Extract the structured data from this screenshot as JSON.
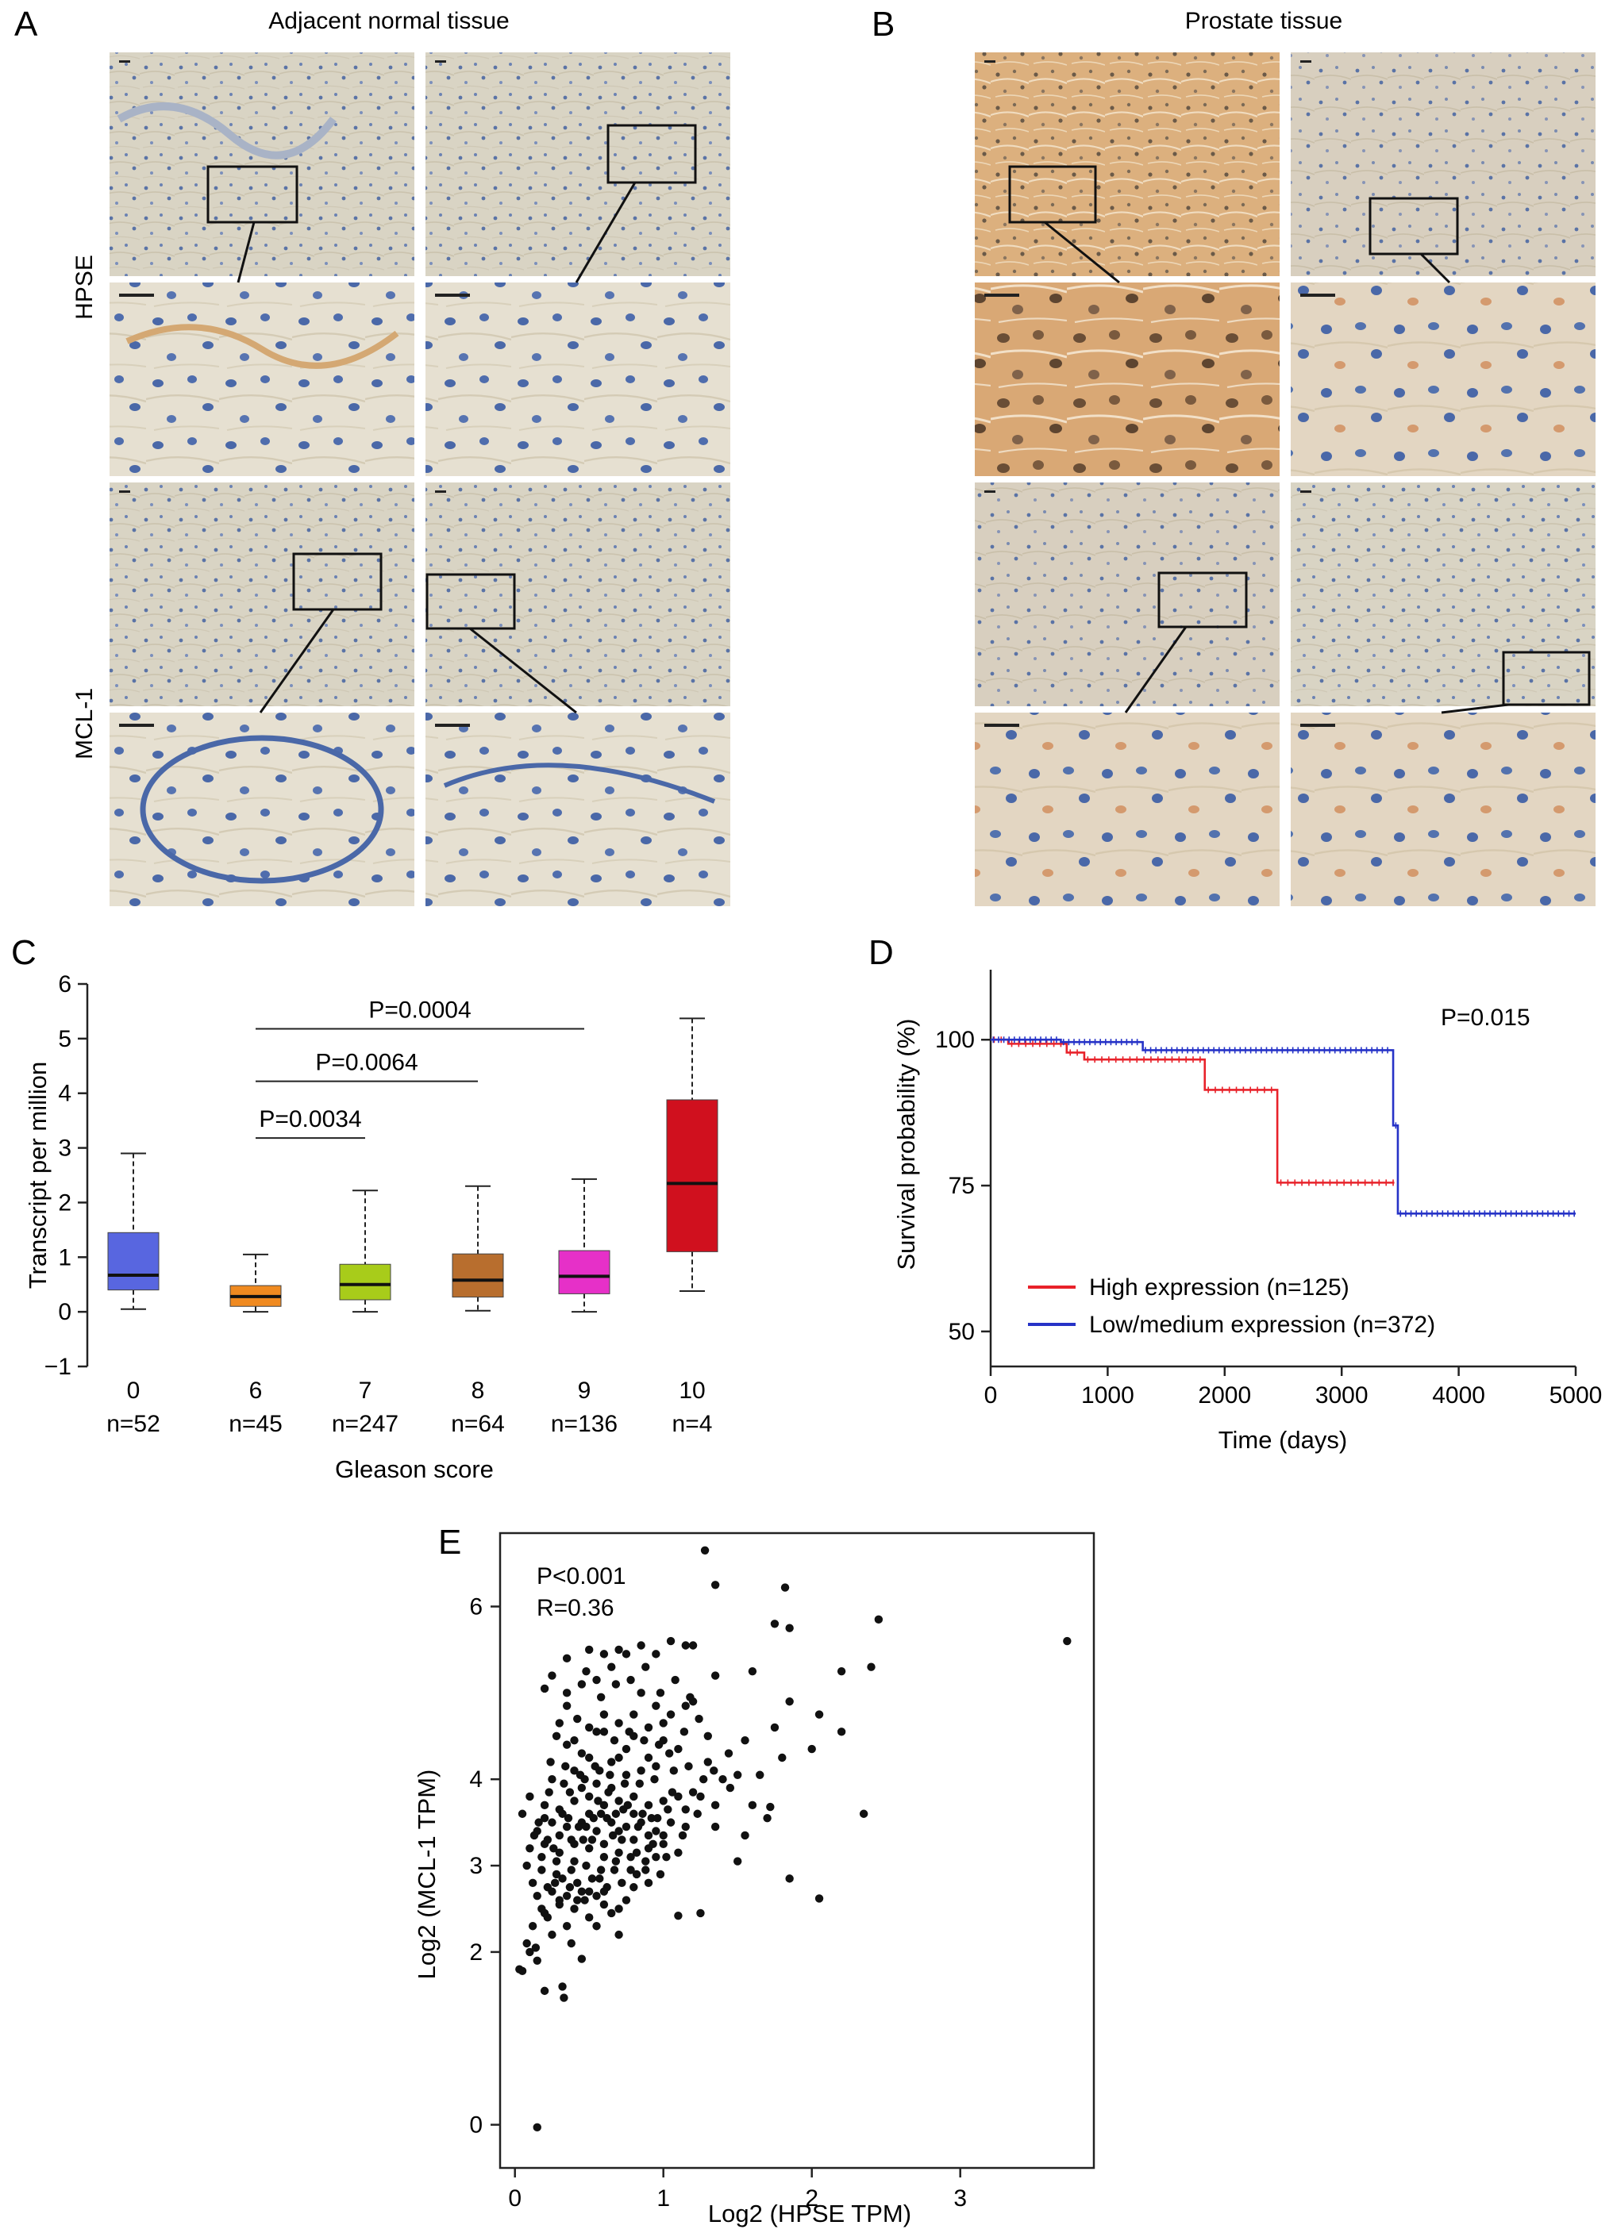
{
  "panelA": {
    "letter": "A",
    "title": "Adjacent normal tissue",
    "row_labels": [
      "HPSE",
      "MCL-1"
    ]
  },
  "panelB": {
    "letter": "B",
    "title": "Prostate tissue"
  },
  "colors": {
    "normal_stroma": "#d9d4c4",
    "normal_nuclei": "#5a73a6",
    "tumor_hpse": "#dcb07e",
    "tumor_mcl": "#d8cfbf",
    "high_expression": "#e8222a",
    "low_expression": "#2633c7",
    "box_colors": [
      "#5866e0",
      "#f08a20",
      "#a8cc1a",
      "#b86e2e",
      "#e630c8",
      "#d0101e"
    ]
  },
  "chart_data": [
    {
      "panel": "C",
      "type": "box",
      "categories": [
        "0",
        "6",
        "7",
        "8",
        "9",
        "10"
      ],
      "category_counts": [
        "n=52",
        "n=45",
        "n=247",
        "n=64",
        "n=136",
        "n=4"
      ],
      "boxes": [
        {
          "min": 0.05,
          "q1": 0.4,
          "median": 0.67,
          "q3": 1.45,
          "max": 2.9
        },
        {
          "min": 0.0,
          "q1": 0.1,
          "median": 0.28,
          "q3": 0.48,
          "max": 1.05
        },
        {
          "min": 0.0,
          "q1": 0.22,
          "median": 0.5,
          "q3": 0.87,
          "max": 2.22
        },
        {
          "min": 0.02,
          "q1": 0.27,
          "median": 0.58,
          "q3": 1.06,
          "max": 2.3
        },
        {
          "min": 0.0,
          "q1": 0.33,
          "median": 0.65,
          "q3": 1.12,
          "max": 2.43
        },
        {
          "min": 0.38,
          "q1": 1.1,
          "median": 2.35,
          "q3": 3.88,
          "max": 5.37
        }
      ],
      "comparisons": [
        {
          "from": "6",
          "to": "7",
          "label": "P=0.0034",
          "y": 3.18
        },
        {
          "from": "6",
          "to": "8",
          "label": "P=0.0064",
          "y": 4.22
        },
        {
          "from": "6",
          "to": "9",
          "label": "P=0.0004",
          "y": 5.18
        }
      ],
      "xlabel": "Gleason score",
      "ylabel": "Transcript per million",
      "ylim": [
        -1,
        6
      ],
      "yticks": [
        "−1",
        "0",
        "1",
        "2",
        "3",
        "4",
        "5",
        "6"
      ]
    },
    {
      "panel": "D",
      "type": "line",
      "series": [
        {
          "name": "High expression (n=125)",
          "x": [
            0,
            150,
            650,
            800,
            1830,
            2450,
            3450
          ],
          "y": [
            100,
            99.3,
            97.8,
            96.6,
            91.4,
            75.5,
            75.5
          ]
        },
        {
          "name": "Low/medium expression (n=372)",
          "x": [
            0,
            600,
            1300,
            3440,
            3480,
            5000
          ],
          "y": [
            100,
            99.6,
            98.2,
            85.3,
            70.2,
            70.2
          ]
        }
      ],
      "annotation": "P=0.015",
      "xlabel": "Time (days)",
      "ylabel": "Survival probability (%)",
      "xlim": [
        0,
        5000
      ],
      "ylim": [
        44,
        112
      ],
      "xticks": [
        "0",
        "1000",
        "2000",
        "3000",
        "4000",
        "5000"
      ],
      "yticks": [
        "50",
        "75",
        "100"
      ],
      "legend_position": "bottom-left"
    },
    {
      "panel": "E",
      "type": "scatter",
      "xlabel": "Log2 (HPSE TPM)",
      "ylabel": "Log2 (MCL-1 TPM)",
      "xlim": [
        -0.1,
        3.9
      ],
      "ylim": [
        -0.5,
        6.85
      ],
      "xticks": [
        "0",
        "1",
        "2",
        "3"
      ],
      "yticks": [
        "0",
        "2",
        "3",
        "4",
        "6"
      ],
      "annotation_p": "P<0.001",
      "annotation_r": "R=0.36",
      "points": [
        [
          0.03,
          1.8
        ],
        [
          0.05,
          1.78
        ],
        [
          0.08,
          2.1
        ],
        [
          0.12,
          2.3
        ],
        [
          0.15,
          1.9
        ],
        [
          0.18,
          2.5
        ],
        [
          0.2,
          1.55
        ],
        [
          0.32,
          1.6
        ],
        [
          0.33,
          1.47
        ],
        [
          0.45,
          1.92
        ],
        [
          0.15,
          -0.03
        ],
        [
          0.1,
          2.0
        ],
        [
          0.14,
          2.05
        ],
        [
          0.22,
          2.4
        ],
        [
          0.25,
          2.2
        ],
        [
          0.3,
          2.6
        ],
        [
          0.35,
          2.3
        ],
        [
          0.38,
          2.1
        ],
        [
          0.42,
          2.6
        ],
        [
          0.5,
          2.4
        ],
        [
          0.55,
          2.3
        ],
        [
          0.6,
          2.55
        ],
        [
          0.65,
          2.45
        ],
        [
          0.7,
          2.2
        ],
        [
          0.75,
          2.6
        ],
        [
          1.1,
          2.42
        ],
        [
          1.25,
          2.45
        ],
        [
          2.05,
          2.62
        ],
        [
          1.85,
          2.85
        ],
        [
          1.5,
          3.05
        ],
        [
          1.35,
          3.45
        ],
        [
          1.55,
          3.35
        ],
        [
          1.7,
          3.55
        ],
        [
          2.35,
          3.6
        ],
        [
          1.6,
          3.7
        ],
        [
          1.72,
          3.68
        ],
        [
          1.45,
          3.9
        ],
        [
          1.5,
          4.05
        ],
        [
          1.65,
          4.05
        ],
        [
          1.8,
          4.25
        ],
        [
          2.0,
          4.35
        ],
        [
          1.55,
          4.45
        ],
        [
          1.75,
          4.6
        ],
        [
          2.2,
          4.55
        ],
        [
          2.05,
          4.75
        ],
        [
          1.85,
          4.9
        ],
        [
          1.6,
          5.25
        ],
        [
          2.2,
          5.25
        ],
        [
          2.4,
          5.3
        ],
        [
          1.2,
          5.55
        ],
        [
          1.35,
          5.2
        ],
        [
          1.75,
          5.8
        ],
        [
          1.85,
          5.75
        ],
        [
          2.45,
          5.85
        ],
        [
          3.72,
          5.6
        ],
        [
          1.28,
          6.65
        ],
        [
          1.35,
          6.25
        ],
        [
          1.82,
          6.22
        ],
        [
          0.2,
          5.05
        ],
        [
          0.25,
          5.2
        ],
        [
          0.35,
          5.4
        ],
        [
          0.5,
          5.5
        ],
        [
          0.6,
          5.45
        ],
        [
          0.7,
          5.5
        ],
        [
          0.85,
          5.55
        ],
        [
          0.95,
          5.45
        ],
        [
          1.05,
          5.6
        ],
        [
          1.15,
          5.55
        ],
        [
          0.45,
          4.3
        ],
        [
          0.55,
          4.55
        ],
        [
          0.35,
          4.85
        ],
        [
          0.8,
          4.75
        ],
        [
          0.6,
          4.55
        ],
        [
          1.0,
          4.65
        ],
        [
          1.15,
          4.85
        ],
        [
          1.2,
          4.9
        ],
        [
          1.3,
          4.5
        ],
        [
          1.1,
          4.35
        ],
        [
          0.9,
          4.25
        ],
        [
          0.75,
          4.35
        ],
        [
          0.25,
          4.0
        ],
        [
          0.4,
          4.1
        ],
        [
          0.5,
          4.25
        ],
        [
          0.65,
          4.2
        ],
        [
          0.7,
          4.25
        ],
        [
          0.85,
          4.1
        ],
        [
          0.95,
          4.15
        ],
        [
          1.3,
          4.2
        ],
        [
          1.4,
          4.0
        ],
        [
          0.1,
          3.8
        ],
        [
          0.2,
          3.7
        ],
        [
          0.3,
          3.65
        ],
        [
          0.4,
          3.75
        ],
        [
          0.5,
          3.8
        ],
        [
          0.6,
          3.7
        ],
        [
          0.7,
          3.75
        ],
        [
          0.8,
          3.8
        ],
        [
          0.9,
          3.7
        ],
        [
          1.0,
          3.75
        ],
        [
          1.1,
          3.8
        ],
        [
          1.2,
          3.85
        ],
        [
          0.05,
          3.6
        ],
        [
          0.15,
          3.4
        ],
        [
          0.25,
          3.5
        ],
        [
          0.35,
          3.45
        ],
        [
          0.45,
          3.5
        ],
        [
          0.55,
          3.4
        ],
        [
          0.65,
          3.5
        ],
        [
          0.75,
          3.45
        ],
        [
          0.85,
          3.5
        ],
        [
          0.95,
          3.4
        ],
        [
          1.05,
          3.5
        ],
        [
          1.15,
          3.45
        ],
        [
          0.1,
          3.2
        ],
        [
          0.2,
          3.25
        ],
        [
          0.3,
          3.15
        ],
        [
          0.4,
          3.25
        ],
        [
          0.5,
          3.2
        ],
        [
          0.6,
          3.25
        ],
        [
          0.7,
          3.15
        ],
        [
          0.8,
          3.3
        ],
        [
          0.9,
          3.2
        ],
        [
          1.0,
          3.25
        ],
        [
          1.1,
          3.15
        ],
        [
          0.08,
          3.0
        ],
        [
          0.18,
          2.95
        ],
        [
          0.28,
          3.05
        ],
        [
          0.38,
          2.95
        ],
        [
          0.48,
          3.0
        ],
        [
          0.58,
          2.95
        ],
        [
          0.68,
          3.05
        ],
        [
          0.78,
          2.95
        ],
        [
          0.88,
          3.05
        ],
        [
          0.98,
          2.9
        ],
        [
          0.12,
          2.8
        ],
        [
          0.22,
          2.75
        ],
        [
          0.32,
          2.85
        ],
        [
          0.42,
          2.8
        ],
        [
          0.52,
          2.85
        ],
        [
          0.62,
          2.75
        ],
        [
          0.72,
          2.8
        ],
        [
          0.82,
          2.9
        ],
        [
          0.15,
          2.65
        ],
        [
          0.25,
          2.7
        ],
        [
          0.35,
          2.65
        ],
        [
          0.45,
          2.7
        ],
        [
          0.55,
          2.65
        ],
        [
          0.2,
          3.55
        ],
        [
          0.3,
          3.35
        ],
        [
          0.4,
          3.05
        ],
        [
          0.5,
          3.6
        ],
        [
          0.6,
          3.1
        ],
        [
          0.7,
          3.4
        ],
        [
          0.8,
          3.6
        ],
        [
          0.9,
          3.35
        ],
        [
          0.45,
          3.9
        ],
        [
          0.55,
          3.95
        ],
        [
          0.35,
          4.4
        ],
        [
          0.65,
          3.9
        ],
        [
          0.75,
          4.05
        ],
        [
          0.28,
          4.5
        ],
        [
          0.42,
          4.7
        ],
        [
          0.58,
          4.95
        ],
        [
          0.68,
          5.1
        ],
        [
          0.48,
          5.25
        ],
        [
          0.78,
          5.15
        ],
        [
          0.88,
          5.3
        ],
        [
          0.98,
          5.0
        ],
        [
          1.08,
          5.15
        ],
        [
          1.18,
          4.95
        ],
        [
          0.22,
          3.3
        ],
        [
          0.32,
          3.6
        ],
        [
          0.52,
          3.3
        ],
        [
          0.62,
          3.55
        ],
        [
          0.72,
          3.3
        ],
        [
          0.82,
          3.15
        ],
        [
          0.92,
          3.55
        ],
        [
          1.02,
          3.1
        ],
        [
          0.18,
          3.1
        ],
        [
          0.38,
          3.3
        ],
        [
          0.48,
          3.45
        ],
        [
          0.58,
          3.6
        ],
        [
          0.68,
          3.6
        ],
        [
          0.78,
          3.1
        ],
        [
          0.88,
          2.95
        ],
        [
          0.28,
          2.9
        ],
        [
          0.37,
          3.85
        ],
        [
          0.47,
          4.0
        ],
        [
          0.57,
          4.1
        ],
        [
          0.67,
          4.45
        ],
        [
          0.77,
          4.55
        ],
        [
          0.87,
          4.45
        ],
        [
          0.97,
          4.4
        ],
        [
          1.07,
          4.1
        ],
        [
          1.17,
          4.15
        ],
        [
          1.27,
          4.0
        ],
        [
          0.13,
          3.35
        ],
        [
          0.23,
          3.85
        ],
        [
          0.33,
          3.95
        ],
        [
          0.43,
          3.45
        ],
        [
          0.53,
          3.55
        ],
        [
          0.63,
          3.85
        ],
        [
          0.73,
          3.65
        ],
        [
          0.83,
          3.45
        ],
        [
          0.93,
          3.25
        ],
        [
          1.03,
          3.65
        ],
        [
          1.13,
          3.35
        ],
        [
          1.23,
          3.6
        ],
        [
          0.27,
          2.8
        ],
        [
          0.37,
          2.75
        ],
        [
          0.47,
          2.6
        ],
        [
          0.57,
          2.85
        ],
        [
          0.67,
          2.95
        ],
        [
          0.16,
          3.5
        ],
        [
          0.26,
          3.2
        ],
        [
          0.36,
          3.55
        ],
        [
          0.46,
          3.3
        ],
        [
          0.56,
          3.75
        ],
        [
          0.66,
          3.35
        ],
        [
          0.76,
          3.7
        ],
        [
          0.86,
          3.6
        ],
        [
          0.96,
          3.55
        ],
        [
          1.06,
          3.85
        ],
        [
          0.2,
          2.45
        ],
        [
          0.3,
          2.55
        ],
        [
          0.4,
          2.5
        ],
        [
          0.5,
          2.7
        ],
        [
          0.6,
          2.7
        ],
        [
          0.7,
          2.5
        ],
        [
          0.8,
          2.75
        ],
        [
          0.9,
          2.8
        ],
        [
          0.95,
          3.1
        ],
        [
          1.0,
          3.35
        ],
        [
          1.15,
          3.65
        ],
        [
          1.25,
          3.8
        ],
        [
          1.35,
          3.7
        ],
        [
          0.35,
          5.0
        ],
        [
          0.45,
          5.1
        ],
        [
          0.55,
          5.15
        ],
        [
          0.65,
          5.3
        ],
        [
          0.75,
          5.45
        ],
        [
          0.85,
          5.0
        ],
        [
          0.95,
          4.85
        ],
        [
          1.05,
          4.75
        ],
        [
          0.3,
          4.65
        ],
        [
          0.4,
          4.45
        ],
        [
          0.5,
          4.6
        ],
        [
          0.6,
          4.75
        ],
        [
          0.7,
          4.65
        ],
        [
          0.8,
          4.5
        ],
        [
          0.9,
          4.6
        ],
        [
          1.0,
          4.45
        ],
        [
          0.24,
          4.2
        ],
        [
          0.34,
          4.15
        ],
        [
          0.44,
          4.05
        ],
        [
          0.54,
          4.15
        ],
        [
          0.64,
          4.05
        ],
        [
          0.74,
          3.95
        ],
        [
          0.84,
          3.95
        ],
        [
          0.94,
          4.0
        ],
        [
          1.04,
          4.3
        ],
        [
          1.14,
          4.55
        ],
        [
          1.24,
          4.7
        ],
        [
          1.34,
          4.1
        ],
        [
          1.44,
          4.3
        ]
      ]
    }
  ]
}
